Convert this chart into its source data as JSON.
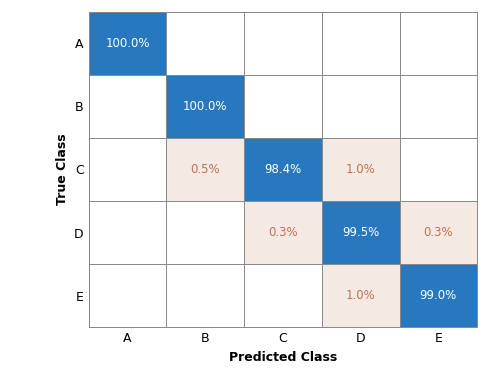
{
  "classes": [
    "A",
    "B",
    "C",
    "D",
    "E"
  ],
  "matrix": [
    [
      100.0,
      0,
      0,
      0,
      0
    ],
    [
      0,
      100.0,
      0,
      0,
      0
    ],
    [
      0,
      0.5,
      98.4,
      1.0,
      0
    ],
    [
      0,
      0,
      0.3,
      99.5,
      0.3
    ],
    [
      0,
      0,
      0,
      1.0,
      99.0
    ]
  ],
  "diagonal_color": "#2878c0",
  "off_diagonal_nonzero_color": "#f5e9e3",
  "zero_color": "#ffffff",
  "grid_color": "#888888",
  "text_color_diag": "#ffffff",
  "text_color_offdiag": "#c87050",
  "xlabel": "Predicted Class",
  "ylabel": "True Class",
  "xlabel_fontsize": 9,
  "ylabel_fontsize": 9,
  "tick_fontsize": 9,
  "value_fontsize": 8.5,
  "background_color": "#ffffff",
  "figure_bg_color": "#ffffff"
}
